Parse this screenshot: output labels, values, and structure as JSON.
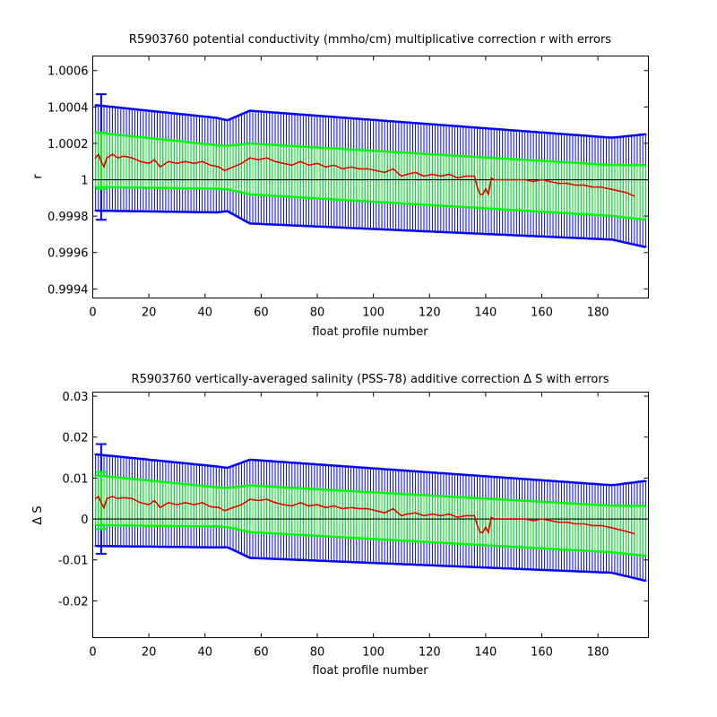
{
  "chart_data": [
    {
      "type": "line",
      "title": "R5903760 potential conductivity (mmho/cm) multiplicative correction r with errors",
      "xlabel": "float profile number",
      "ylabel": "r",
      "xlim": [
        0,
        198
      ],
      "ylim": [
        0.99935,
        1.00068
      ],
      "xticks": [
        0,
        20,
        40,
        60,
        80,
        100,
        120,
        140,
        160,
        180
      ],
      "xtick_labels": [
        "0",
        "20",
        "40",
        "60",
        "80",
        "100",
        "120",
        "140",
        "160",
        "180"
      ],
      "yticks": [
        0.9994,
        0.9996,
        0.9998,
        1.0,
        1.0002,
        1.0004,
        1.0006
      ],
      "ytick_labels": [
        "0.9994",
        "0.9996",
        "0.9998",
        "1",
        "1.0002",
        "1.0004",
        "1.0006"
      ],
      "reference_line": 1.0,
      "grid": false,
      "series": [
        {
          "style": "red correction line",
          "color": "#e00000",
          "x": [
            1,
            2,
            3,
            4,
            5,
            7,
            9,
            11,
            14,
            17,
            20,
            22,
            24,
            27,
            30,
            33,
            36,
            39,
            42,
            45,
            47,
            50,
            53,
            56,
            59,
            62,
            65,
            68,
            71,
            74,
            77,
            80,
            83,
            86,
            89,
            92,
            95,
            98,
            101,
            104,
            107,
            110,
            112,
            115,
            118,
            121,
            124,
            127,
            130,
            133,
            136,
            137,
            138,
            139,
            140,
            141,
            142,
            143,
            145,
            148,
            151,
            154,
            157,
            160,
            163,
            166,
            169,
            172,
            175,
            178,
            181,
            184,
            187,
            190,
            193
          ],
          "y": [
            1.00012,
            1.00014,
            1.0001,
            1.00007,
            1.00012,
            1.00014,
            1.00012,
            1.00013,
            1.00012,
            1.0001,
            1.00009,
            1.00011,
            1.00007,
            1.0001,
            1.00009,
            1.0001,
            1.00009,
            1.0001,
            1.00008,
            1.00007,
            1.00005,
            1.00007,
            1.00009,
            1.00012,
            1.00011,
            1.00012,
            1.0001,
            1.00009,
            1.00008,
            1.0001,
            1.00008,
            1.00009,
            1.00007,
            1.00008,
            1.00006,
            1.00007,
            1.00006,
            1.00006,
            1.00005,
            1.00004,
            1.00006,
            1.00002,
            1.00003,
            1.00004,
            1.00002,
            1.00003,
            1.00002,
            1.00003,
            1.00001,
            1.00002,
            1.00002,
            0.99996,
            0.99992,
            0.99992,
            0.99995,
            0.99992,
            1.00001,
            1.0,
            1.0,
            1.0,
            1.0,
            1.0,
            0.99999,
            1.0,
            0.99999,
            0.99998,
            0.99998,
            0.99997,
            0.99997,
            0.99996,
            0.99996,
            0.99995,
            0.99994,
            0.99993,
            0.99991
          ]
        },
        {
          "style": "green error bars (value ± error)",
          "color": "#00ff00",
          "x_start": 1,
          "x_end": 197,
          "center_start": 1.00011,
          "center_end": 0.99993,
          "halfwidth_key_x": [
            1,
            44,
            48,
            56,
            185,
            197
          ],
          "halfwidth_key": [
            0.00015,
            0.00012,
            0.00012,
            0.00014,
            0.00014,
            0.00015
          ]
        },
        {
          "style": "blue error bars (value ± 2×error)",
          "color": "#0000ff",
          "x_start": 1,
          "x_end": 197,
          "center_start": 1.00012,
          "center_end": 0.99994,
          "halfwidth_key_x": [
            1,
            44,
            48,
            56,
            185,
            197
          ],
          "halfwidth_key": [
            0.00029,
            0.00026,
            0.00025,
            0.00031,
            0.00028,
            0.00031
          ]
        }
      ],
      "first_profile_markers": {
        "x": 3,
        "green_range": [
          0.99995,
          1.00026
        ],
        "blue_range": [
          0.99978,
          1.00047
        ]
      }
    },
    {
      "type": "line",
      "title": "R5903760 vertically-averaged salinity (PSS-78) additive correction Δ S with errors",
      "xlabel": "float profile number",
      "ylabel": "Δ S",
      "xlim": [
        0,
        198
      ],
      "ylim": [
        -0.029,
        0.031
      ],
      "xticks": [
        0,
        20,
        40,
        60,
        80,
        100,
        120,
        140,
        160,
        180
      ],
      "xtick_labels": [
        "0",
        "20",
        "40",
        "60",
        "80",
        "100",
        "120",
        "140",
        "160",
        "180"
      ],
      "yticks": [
        -0.02,
        -0.01,
        0,
        0.01,
        0.02,
        0.03
      ],
      "ytick_labels": [
        "-0.02",
        "-0.01",
        "0",
        "0.01",
        "0.02",
        "0.03"
      ],
      "reference_line": 0,
      "grid": false,
      "series": [
        {
          "style": "red correction line",
          "color": "#e00000",
          "x": [
            1,
            2,
            3,
            4,
            5,
            7,
            9,
            11,
            14,
            17,
            20,
            22,
            24,
            27,
            30,
            33,
            36,
            39,
            42,
            45,
            47,
            50,
            53,
            56,
            59,
            62,
            65,
            68,
            71,
            74,
            77,
            80,
            83,
            86,
            89,
            92,
            95,
            98,
            101,
            104,
            107,
            110,
            112,
            115,
            118,
            121,
            124,
            127,
            130,
            133,
            136,
            137,
            138,
            139,
            140,
            141,
            142,
            143,
            145,
            148,
            151,
            154,
            157,
            160,
            163,
            166,
            169,
            172,
            175,
            178,
            181,
            184,
            187,
            190,
            193
          ],
          "y": [
            0.005,
            0.0055,
            0.004,
            0.0027,
            0.005,
            0.0055,
            0.005,
            0.0052,
            0.005,
            0.004,
            0.0035,
            0.0045,
            0.0028,
            0.004,
            0.0035,
            0.004,
            0.0035,
            0.004,
            0.003,
            0.0028,
            0.002,
            0.0028,
            0.0035,
            0.0048,
            0.0045,
            0.0048,
            0.004,
            0.0035,
            0.0032,
            0.004,
            0.0032,
            0.0035,
            0.0028,
            0.0032,
            0.0025,
            0.0028,
            0.0025,
            0.0025,
            0.002,
            0.0015,
            0.0025,
            0.0008,
            0.0012,
            0.0015,
            0.0008,
            0.0012,
            0.0008,
            0.0012,
            0.0004,
            0.0008,
            0.0008,
            -0.0015,
            -0.0033,
            -0.0033,
            -0.002,
            -0.0033,
            0.0004,
            0.0,
            0.0,
            0.0,
            0.0,
            0.0,
            -0.0004,
            0.0,
            -0.0004,
            -0.0008,
            -0.0008,
            -0.0012,
            -0.0012,
            -0.0016,
            -0.0016,
            -0.002,
            -0.0025,
            -0.003,
            -0.0036
          ]
        },
        {
          "style": "green error bars (value ± error)",
          "color": "#00ff00",
          "x_start": 1,
          "x_end": 197,
          "center_start": 0.0046,
          "center_end": -0.0029,
          "halfwidth_key_x": [
            1,
            44,
            48,
            56,
            185,
            197
          ],
          "halfwidth_key": [
            0.0061,
            0.0048,
            0.0048,
            0.0057,
            0.0057,
            0.0061
          ]
        },
        {
          "style": "blue error bars (value ± 2×error)",
          "color": "#0000ff",
          "x_start": 1,
          "x_end": 197,
          "center_start": 0.0046,
          "center_end": -0.0029,
          "halfwidth_key_x": [
            1,
            44,
            48,
            56,
            185,
            197
          ],
          "halfwidth_key": [
            0.0112,
            0.0099,
            0.0097,
            0.012,
            0.0107,
            0.0122
          ]
        }
      ],
      "first_profile_markers": {
        "x": 3,
        "green_range": [
          -0.0025,
          0.0115
        ],
        "blue_range": [
          -0.0085,
          0.0183
        ]
      }
    }
  ]
}
